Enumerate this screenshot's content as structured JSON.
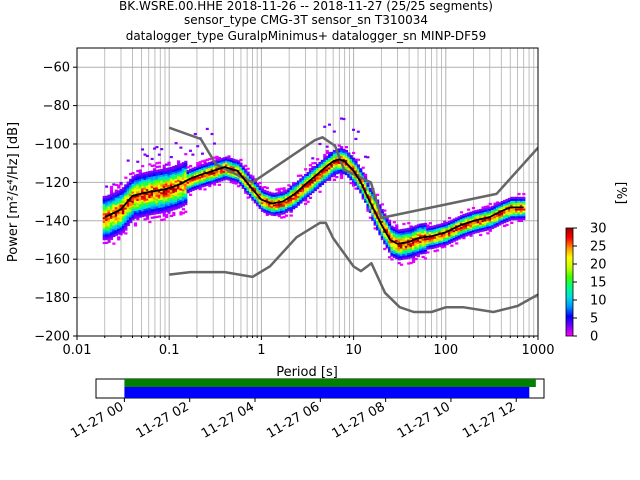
{
  "title_lines": [
    "BK.WSRE.00.HHE   2018-11-26 -- 2018-11-27  (25/25 segments)",
    "sensor_type CMG-3T sensor_sn T310034",
    "datalogger_type GuralpMinimus+ datalogger_sn MINP-DF59"
  ],
  "chart_data": {
    "type": "heatmap",
    "title": "BK.WSRE.00.HHE   2018-11-26 -- 2018-11-27  (25/25 segments)",
    "subtitle": "sensor_type CMG-3T sensor_sn T310034 / datalogger_type GuralpMinimus+ datalogger_sn MINP-DF59",
    "xlabel": "Period [s]",
    "ylabel": "Power [m²/s⁴/Hz] [dB]",
    "xscale": "log",
    "xlim": [
      0.01,
      1000
    ],
    "ylim": [
      -200,
      -50
    ],
    "x_tick_labels": [
      "0.01",
      "0.1",
      "1",
      "10",
      "100",
      "1000"
    ],
    "y_tick_labels": [
      "−60",
      "−80",
      "−100",
      "−120",
      "−140",
      "−160",
      "−180",
      "−200"
    ],
    "y_ticks": [
      -60,
      -80,
      -100,
      -120,
      -140,
      -160,
      -180,
      -200
    ],
    "grid": true,
    "colorbar": {
      "label": "[%]",
      "ticks": [
        "0",
        "5",
        "10",
        "15",
        "20",
        "25",
        "30"
      ],
      "range": [
        0,
        30
      ],
      "colormap": [
        "#ff00ff",
        "#7a00ff",
        "#0000ff",
        "#0096ff",
        "#00e0e0",
        "#00ff80",
        "#40ff00",
        "#c8ff00",
        "#ffff00",
        "#ff9000",
        "#ff0000",
        "#a00000"
      ]
    },
    "series": [
      {
        "name": "",
        "kind": "noise-model-high",
        "color": "#666666",
        "x": [
          0.1,
          0.22,
          0.32,
          0.8,
          3.8,
          4.6,
          6.3,
          7.9,
          15.4,
          20,
          354.8,
          10000
        ],
        "y": [
          -91.5,
          -97.4,
          -110.5,
          -120,
          -98,
          -96.5,
          -101,
          -113.5,
          -120,
          -138.5,
          -126,
          -48.5
        ]
      },
      {
        "name": "",
        "kind": "noise-model-low",
        "color": "#666666",
        "x": [
          0.1,
          0.17,
          0.4,
          0.8,
          1.24,
          2.4,
          4.3,
          5,
          6,
          10,
          12,
          15.6,
          21.9,
          31.6,
          45,
          70,
          101,
          154,
          328,
          600,
          10000
        ],
        "y": [
          -168,
          -166.7,
          -166.7,
          -169.2,
          -163.7,
          -148.6,
          -141.1,
          -141.1,
          -149,
          -163.8,
          -166.2,
          -162.1,
          -177.5,
          -185,
          -187.5,
          -187.5,
          -185,
          -185,
          -187.5,
          -184.4,
          -151.5
        ]
      },
      {
        "name": "",
        "kind": "psd-mode",
        "color": "#000000",
        "x": [
          0.02,
          0.025,
          0.03,
          0.04,
          0.06,
          0.08,
          0.1,
          0.13,
          0.17,
          0.22,
          0.3,
          0.4,
          0.55,
          0.75,
          1,
          1.3,
          1.7,
          2.3,
          3,
          4,
          5,
          6,
          7,
          8,
          10,
          12,
          15,
          20,
          25,
          30,
          40,
          50,
          70,
          100,
          150,
          200,
          300,
          400,
          500,
          600,
          700
        ],
        "y": [
          -138,
          -136,
          -134,
          -127,
          -125,
          -124,
          -123,
          -121,
          -118,
          -116,
          -114,
          -112,
          -114,
          -122,
          -129,
          -131,
          -130,
          -126,
          -121,
          -116,
          -112,
          -109,
          -108,
          -109,
          -114,
          -120,
          -130,
          -142,
          -150,
          -152,
          -151,
          -149,
          -148,
          -146,
          -142,
          -140,
          -138,
          -135,
          -133,
          -133,
          -133
        ]
      }
    ],
    "time_coverage": {
      "x_tick_labels": [
        "11-27 00",
        "11-27 02",
        "11-27 04",
        "11-27 06",
        "11-27 08",
        "11-27 10",
        "11-27 12"
      ],
      "range_hours": [
        -0.87,
        12.85
      ],
      "bars": [
        {
          "name": "",
          "color": "#008000",
          "start_h": 0,
          "end_h": 12.6
        },
        {
          "name": "",
          "color": "#0000ff",
          "start_h": 0,
          "end_h": 12.4
        }
      ]
    }
  }
}
